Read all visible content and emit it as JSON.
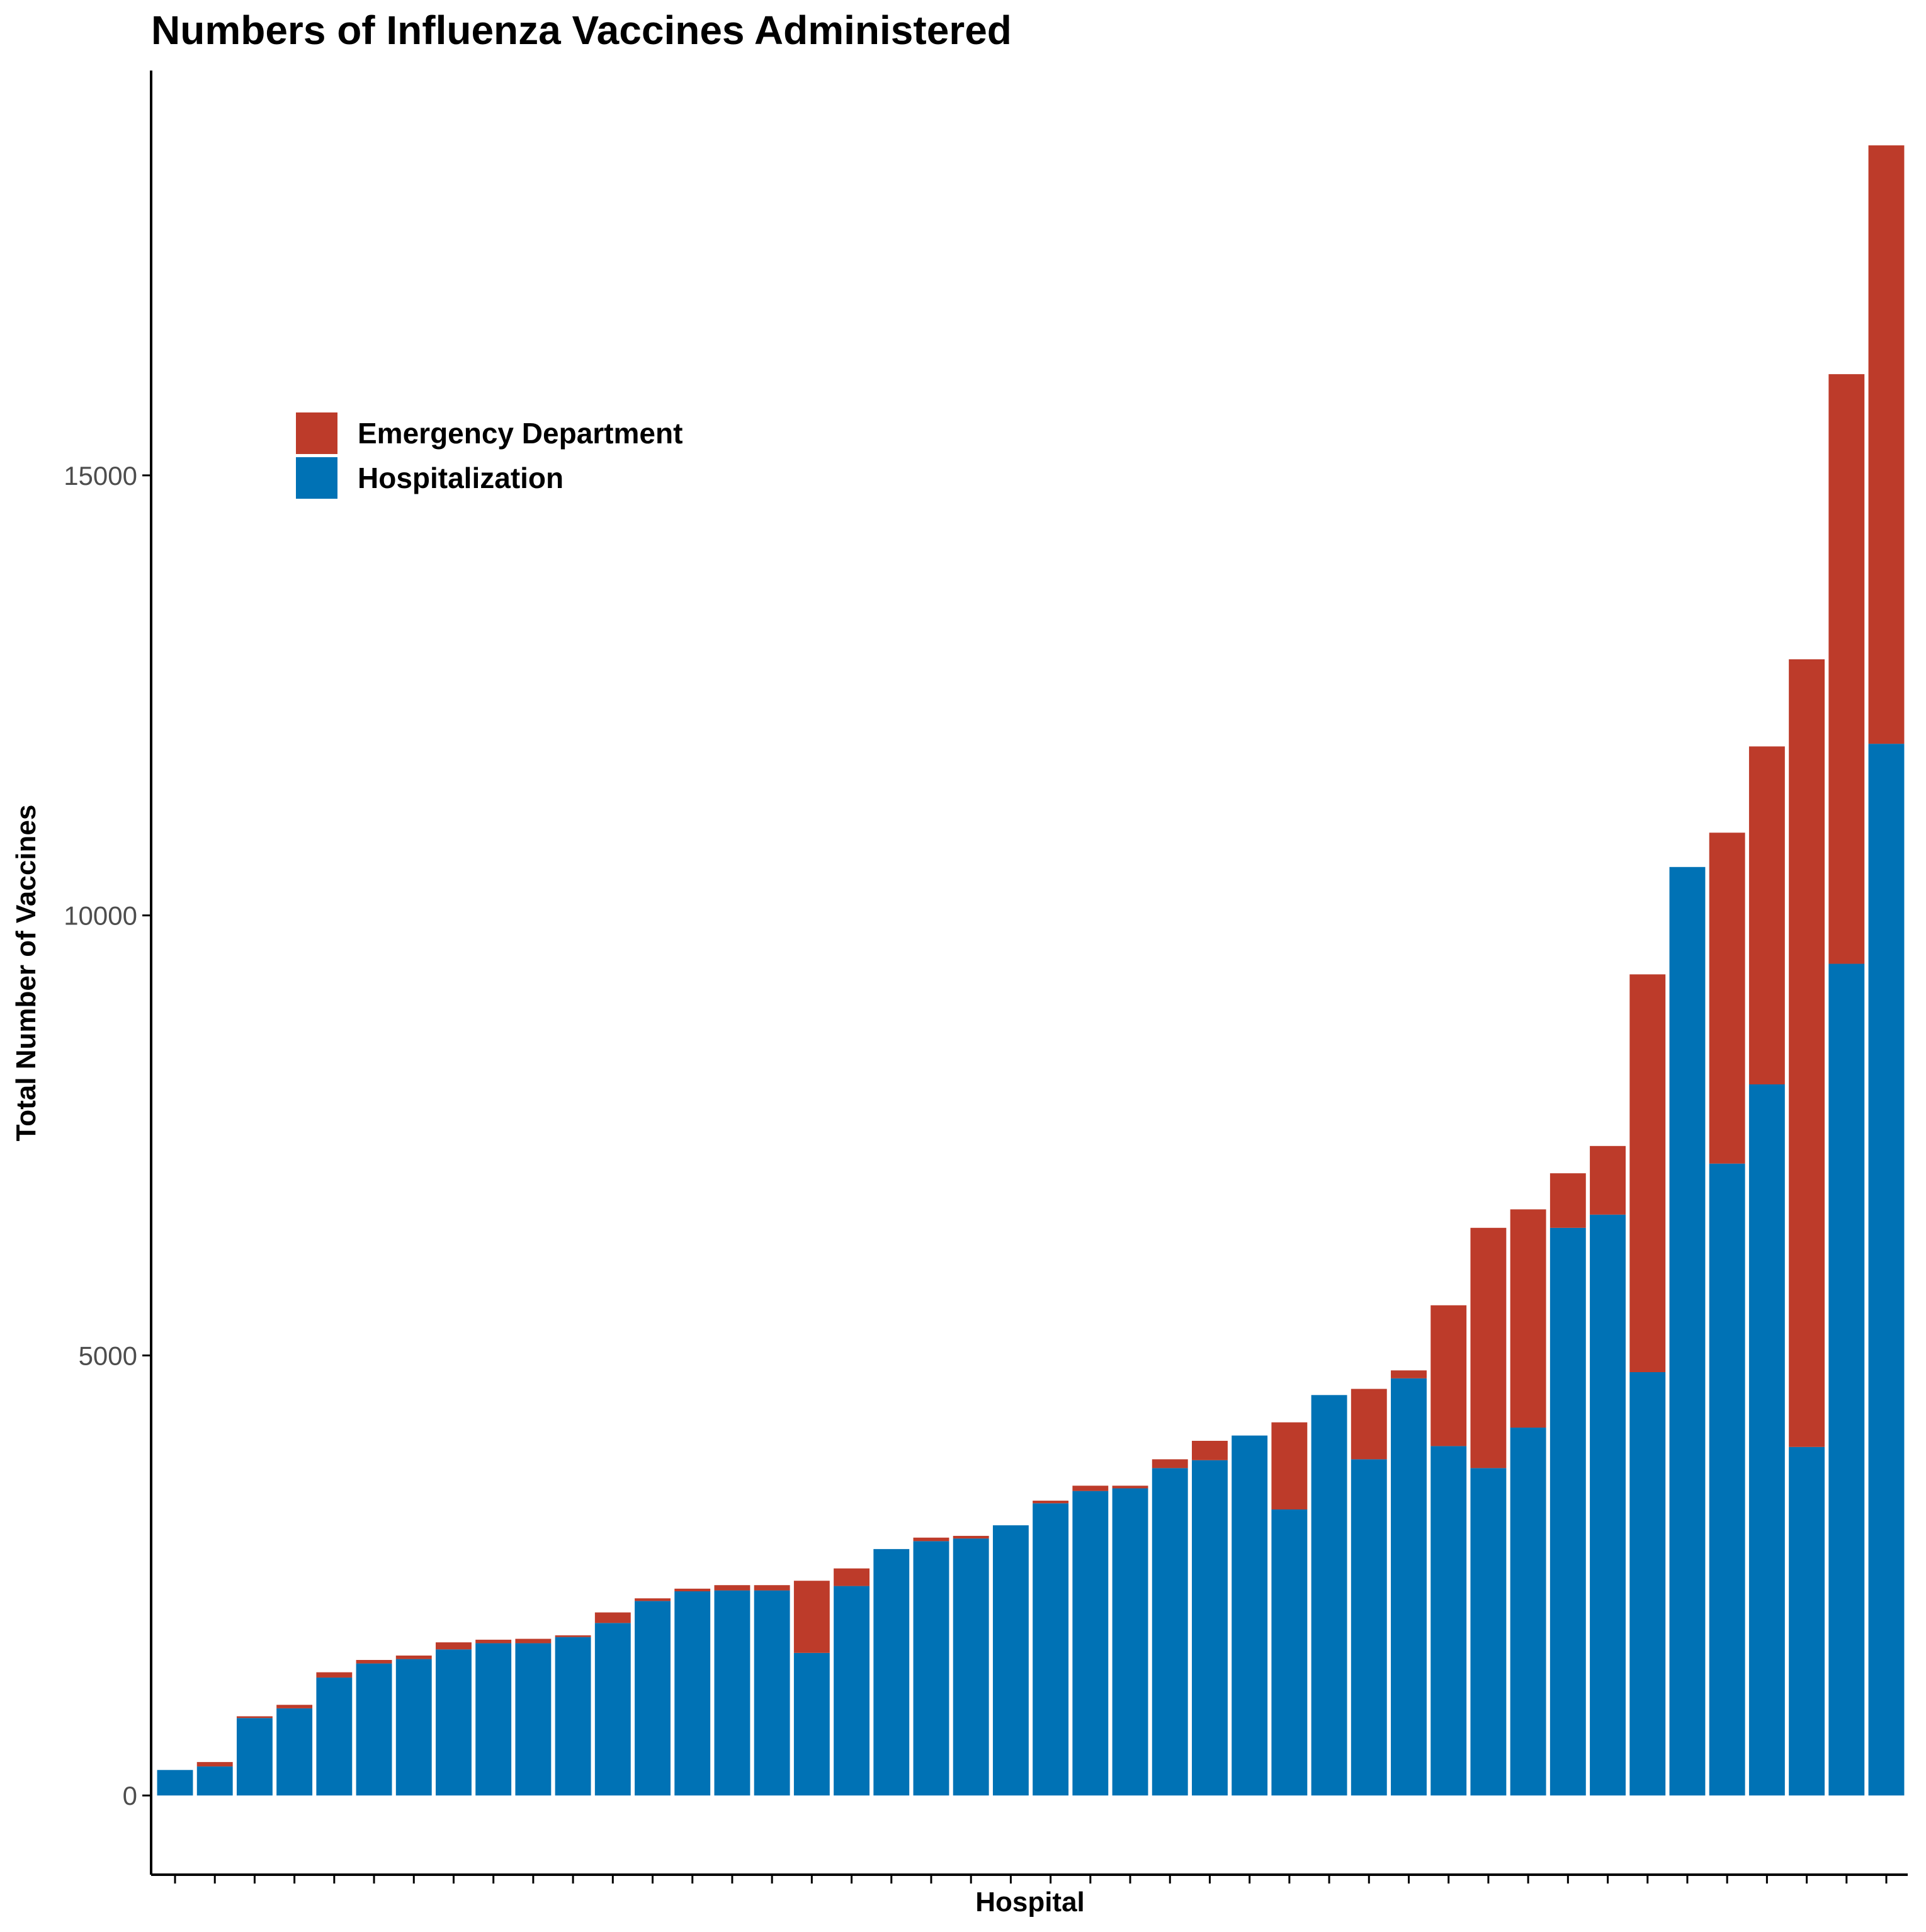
{
  "chart_data": {
    "type": "bar",
    "stacked": true,
    "title": "Numbers of Influenza Vaccines Administered",
    "xlabel": "Hospital",
    "ylabel": "Total Number of Vaccines",
    "yticks": [
      0,
      5000,
      10000,
      15000
    ],
    "ylim": [
      -900,
      19600
    ],
    "grid": false,
    "legend_position": "top-left",
    "x_tick_labels_shown": false,
    "colors": {
      "Emergency Department": "#bd3b2a",
      "Hospitalization": "#0072b5"
    },
    "series": [
      {
        "name": "Hospitalization",
        "values": [
          290,
          330,
          880,
          990,
          1340,
          1500,
          1550,
          1660,
          1730,
          1730,
          1800,
          1960,
          2210,
          2320,
          2330,
          2330,
          1620,
          2380,
          2800,
          2890,
          2920,
          3070,
          3320,
          3460,
          3490,
          3720,
          3810,
          4090,
          3250,
          4550,
          3820,
          4740,
          3970,
          3720,
          4180,
          6450,
          6600,
          4810,
          10550,
          7180,
          8080,
          3960,
          9450,
          11950
        ]
      },
      {
        "name": "Emergency Department",
        "values": [
          0,
          50,
          20,
          40,
          60,
          40,
          40,
          80,
          40,
          50,
          20,
          120,
          30,
          30,
          60,
          60,
          820,
          200,
          0,
          40,
          30,
          0,
          30,
          60,
          30,
          100,
          220,
          0,
          990,
          0,
          800,
          90,
          1600,
          2730,
          2480,
          620,
          780,
          4520,
          0,
          3760,
          3840,
          8950,
          6700,
          6800
        ]
      }
    ]
  }
}
